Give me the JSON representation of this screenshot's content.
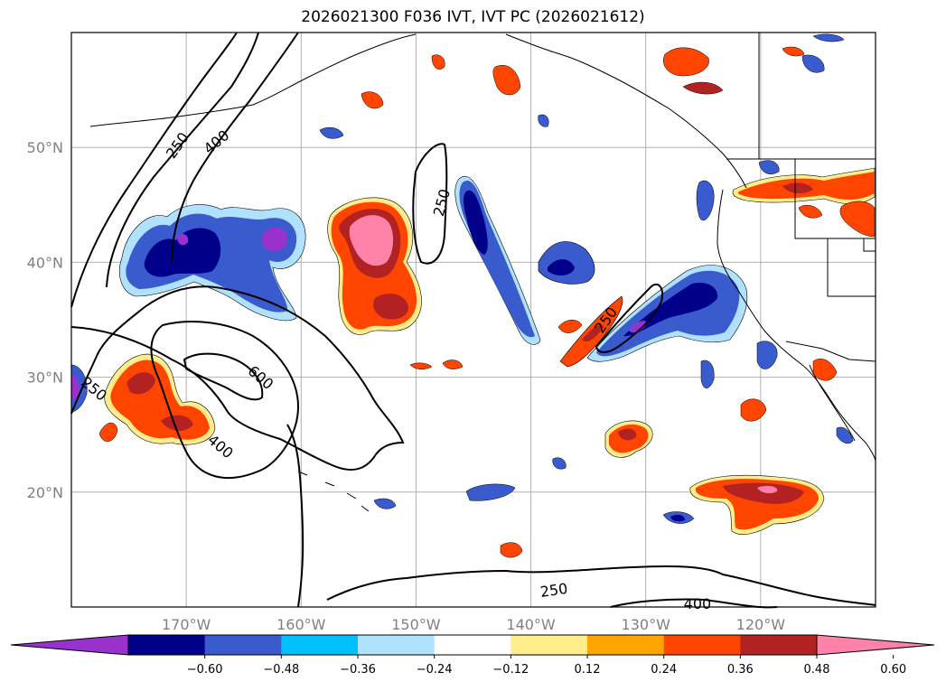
{
  "title": "2026021300 F036 IVT, IVT PC (2026021612)",
  "map": {
    "projection": "PlateCarree",
    "lon_range": [
      -180,
      -110
    ],
    "lat_range": [
      10,
      60
    ],
    "lat_ticks": [
      {
        "value": 50,
        "label": "50°N"
      },
      {
        "value": 40,
        "label": "40°N"
      },
      {
        "value": 30,
        "label": "30°N"
      },
      {
        "value": 20,
        "label": "20°N"
      }
    ],
    "lon_ticks": [
      {
        "value": -170,
        "label": "170°W"
      },
      {
        "value": -160,
        "label": "160°W"
      },
      {
        "value": -150,
        "label": "150°W"
      },
      {
        "value": -140,
        "label": "140°W"
      },
      {
        "value": -130,
        "label": "130°W"
      },
      {
        "value": -120,
        "label": "120°W"
      }
    ],
    "contour_labels": [
      {
        "text": "250",
        "lon": -178,
        "lat": 29.0,
        "rot": 40
      },
      {
        "text": "250",
        "lon": -170.8,
        "lat": 50.2,
        "rot": -55
      },
      {
        "text": "400",
        "lon": -167.4,
        "lat": 50.5,
        "rot": -40
      },
      {
        "text": "250",
        "lon": -147.8,
        "lat": 45.2,
        "rot": -75
      },
      {
        "text": "250",
        "lon": -133.5,
        "lat": 35.0,
        "rot": -55
      },
      {
        "text": "600",
        "lon": -163.5,
        "lat": 30.0,
        "rot": 40
      },
      {
        "text": "400",
        "lon": -167.0,
        "lat": 24.0,
        "rot": 40
      },
      {
        "text": "250",
        "lon": -138.0,
        "lat": 11.5,
        "rot": -8
      },
      {
        "text": "400",
        "lon": -125.5,
        "lat": 10.3,
        "rot": 0
      }
    ]
  },
  "colorbar": {
    "ticks": [
      "−0.60",
      "−0.48",
      "−0.36",
      "−0.24",
      "−0.12",
      "0.12",
      "0.24",
      "0.36",
      "0.48",
      "0.60"
    ],
    "colors": [
      "#9932cc",
      "#00008b",
      "#3a5bcd",
      "#00bfff",
      "#b0e2ff",
      "#ffffff",
      "#ffec8b",
      "#ffa500",
      "#ff4500",
      "#b22222",
      "#ff82ab"
    ]
  },
  "colors": {
    "land_line": "#000000",
    "grid": "#b0b0b0",
    "contour": "#000000"
  }
}
